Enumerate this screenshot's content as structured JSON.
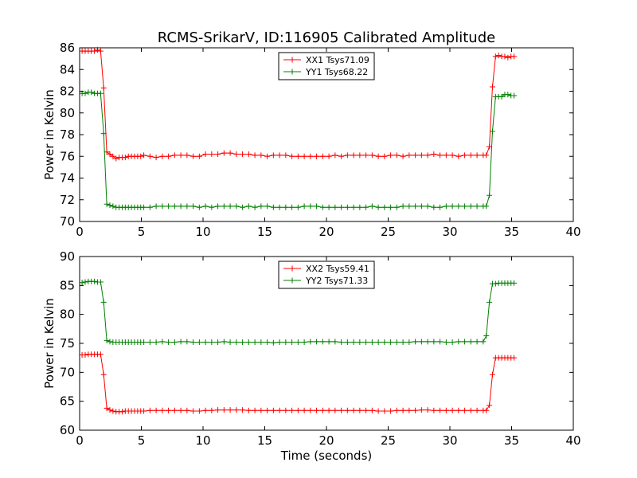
{
  "figure": {
    "title": "RCMS-SrikarV, ID:116905 Calibrated Amplitude"
  },
  "chart_data": [
    {
      "type": "line",
      "title": "RCMS-SrikarV, ID:116905 Calibrated Amplitude",
      "xlabel": "",
      "ylabel": "Power in Kelvin",
      "xlim": [
        0,
        40
      ],
      "ylim": [
        70,
        86
      ],
      "xticks": [
        "0",
        "5",
        "10",
        "15",
        "20",
        "25",
        "30",
        "35",
        "40"
      ],
      "yticks": [
        "70",
        "72",
        "74",
        "76",
        "78",
        "80",
        "82",
        "84",
        "86"
      ],
      "grid": false,
      "legend_position": "top-center",
      "series": [
        {
          "name": "XX1 Tsys71.09",
          "color": "#ff0000",
          "x": [
            0.2,
            0.45,
            0.7,
            0.95,
            1.2,
            1.45,
            1.7,
            1.95,
            2.2,
            2.45,
            2.7,
            2.95,
            3.2,
            3.45,
            3.7,
            3.95,
            4.2,
            4.45,
            4.7,
            4.95,
            5.2,
            5.7,
            6.2,
            6.7,
            7.2,
            7.7,
            8.2,
            8.7,
            9.2,
            9.7,
            10.2,
            10.7,
            11.2,
            11.7,
            12.2,
            12.7,
            13.2,
            13.7,
            14.2,
            14.7,
            15.2,
            15.7,
            16.2,
            16.7,
            17.2,
            17.7,
            18.2,
            18.7,
            19.2,
            19.7,
            20.2,
            20.7,
            21.2,
            21.7,
            22.2,
            22.7,
            23.2,
            23.7,
            24.2,
            24.7,
            25.2,
            25.7,
            26.2,
            26.7,
            27.2,
            27.7,
            28.2,
            28.7,
            29.2,
            29.7,
            30.2,
            30.7,
            31.2,
            31.7,
            32.2,
            32.7,
            32.95,
            33.2,
            33.45,
            33.7,
            33.95,
            34.2,
            34.45,
            34.7,
            34.95,
            35.2
          ],
          "y": [
            85.7,
            85.7,
            85.7,
            85.7,
            85.7,
            85.8,
            85.7,
            82.3,
            76.4,
            76.2,
            76.0,
            75.8,
            75.9,
            75.9,
            75.9,
            76.0,
            76.0,
            76.0,
            76.0,
            76.0,
            76.1,
            76.0,
            75.9,
            76.0,
            76.0,
            76.1,
            76.1,
            76.1,
            76.0,
            76.0,
            76.2,
            76.2,
            76.2,
            76.3,
            76.3,
            76.2,
            76.2,
            76.2,
            76.1,
            76.1,
            76.0,
            76.1,
            76.1,
            76.1,
            76.0,
            76.0,
            76.0,
            76.0,
            76.0,
            76.0,
            76.0,
            76.1,
            76.0,
            76.1,
            76.1,
            76.1,
            76.1,
            76.1,
            76.0,
            76.0,
            76.1,
            76.1,
            76.0,
            76.1,
            76.1,
            76.1,
            76.1,
            76.2,
            76.1,
            76.1,
            76.1,
            76.0,
            76.1,
            76.1,
            76.1,
            76.1,
            76.1,
            76.9,
            82.4,
            85.2,
            85.3,
            85.2,
            85.2,
            85.1,
            85.2,
            85.2
          ]
        },
        {
          "name": "YY1 Tsys68.22",
          "color": "#008000",
          "x": [
            0.2,
            0.45,
            0.7,
            0.95,
            1.2,
            1.45,
            1.7,
            1.95,
            2.2,
            2.45,
            2.7,
            2.95,
            3.2,
            3.45,
            3.7,
            3.95,
            4.2,
            4.45,
            4.7,
            4.95,
            5.2,
            5.7,
            6.2,
            6.7,
            7.2,
            7.7,
            8.2,
            8.7,
            9.2,
            9.7,
            10.2,
            10.7,
            11.2,
            11.7,
            12.2,
            12.7,
            13.2,
            13.7,
            14.2,
            14.7,
            15.2,
            15.7,
            16.2,
            16.7,
            17.2,
            17.7,
            18.2,
            18.7,
            19.2,
            19.7,
            20.2,
            20.7,
            21.2,
            21.7,
            22.2,
            22.7,
            23.2,
            23.7,
            24.2,
            24.7,
            25.2,
            25.7,
            26.2,
            26.7,
            27.2,
            27.7,
            28.2,
            28.7,
            29.2,
            29.7,
            30.2,
            30.7,
            31.2,
            31.7,
            32.2,
            32.7,
            32.95,
            33.2,
            33.45,
            33.7,
            33.95,
            34.2,
            34.45,
            34.7,
            34.95,
            35.2
          ],
          "y": [
            81.8,
            81.8,
            81.9,
            81.9,
            81.8,
            81.8,
            81.8,
            78.1,
            71.6,
            71.5,
            71.4,
            71.3,
            71.3,
            71.3,
            71.3,
            71.3,
            71.3,
            71.3,
            71.3,
            71.3,
            71.3,
            71.3,
            71.4,
            71.4,
            71.4,
            71.4,
            71.4,
            71.4,
            71.4,
            71.3,
            71.4,
            71.3,
            71.4,
            71.4,
            71.4,
            71.4,
            71.3,
            71.4,
            71.3,
            71.4,
            71.4,
            71.3,
            71.3,
            71.3,
            71.3,
            71.3,
            71.4,
            71.4,
            71.4,
            71.3,
            71.3,
            71.3,
            71.3,
            71.3,
            71.3,
            71.3,
            71.3,
            71.4,
            71.3,
            71.3,
            71.3,
            71.3,
            71.4,
            71.4,
            71.4,
            71.4,
            71.4,
            71.3,
            71.3,
            71.4,
            71.4,
            71.4,
            71.4,
            71.4,
            71.4,
            71.4,
            71.4,
            72.4,
            78.3,
            81.5,
            81.5,
            81.5,
            81.7,
            81.7,
            81.6,
            81.6
          ]
        }
      ]
    },
    {
      "type": "line",
      "title": "",
      "xlabel": "Time (seconds)",
      "ylabel": "Power in Kelvin",
      "xlim": [
        0,
        40
      ],
      "ylim": [
        60,
        90
      ],
      "xticks": [
        "0",
        "5",
        "10",
        "15",
        "20",
        "25",
        "30",
        "35",
        "40"
      ],
      "yticks": [
        "60",
        "65",
        "70",
        "75",
        "80",
        "85",
        "90"
      ],
      "grid": false,
      "legend_position": "top-center",
      "series": [
        {
          "name": "XX2 Tsys59.41",
          "color": "#ff0000",
          "x": [
            0.2,
            0.45,
            0.7,
            0.95,
            1.2,
            1.45,
            1.7,
            1.95,
            2.2,
            2.45,
            2.7,
            2.95,
            3.2,
            3.45,
            3.7,
            3.95,
            4.2,
            4.45,
            4.7,
            4.95,
            5.2,
            5.7,
            6.2,
            6.7,
            7.2,
            7.7,
            8.2,
            8.7,
            9.2,
            9.7,
            10.2,
            10.7,
            11.2,
            11.7,
            12.2,
            12.7,
            13.2,
            13.7,
            14.2,
            14.7,
            15.2,
            15.7,
            16.2,
            16.7,
            17.2,
            17.7,
            18.2,
            18.7,
            19.2,
            19.7,
            20.2,
            20.7,
            21.2,
            21.7,
            22.2,
            22.7,
            23.2,
            23.7,
            24.2,
            24.7,
            25.2,
            25.7,
            26.2,
            26.7,
            27.2,
            27.7,
            28.2,
            28.7,
            29.2,
            29.7,
            30.2,
            30.7,
            31.2,
            31.7,
            32.2,
            32.7,
            32.95,
            33.2,
            33.45,
            33.7,
            33.95,
            34.2,
            34.45,
            34.7,
            34.95,
            35.2
          ],
          "y": [
            73.0,
            73.0,
            73.1,
            73.1,
            73.1,
            73.1,
            73.1,
            69.6,
            63.8,
            63.5,
            63.3,
            63.2,
            63.2,
            63.2,
            63.3,
            63.3,
            63.3,
            63.3,
            63.3,
            63.3,
            63.3,
            63.4,
            63.4,
            63.4,
            63.4,
            63.4,
            63.4,
            63.4,
            63.3,
            63.3,
            63.4,
            63.4,
            63.5,
            63.5,
            63.5,
            63.5,
            63.5,
            63.4,
            63.4,
            63.4,
            63.4,
            63.4,
            63.4,
            63.4,
            63.4,
            63.4,
            63.4,
            63.4,
            63.4,
            63.4,
            63.4,
            63.4,
            63.4,
            63.4,
            63.4,
            63.4,
            63.4,
            63.4,
            63.3,
            63.3,
            63.3,
            63.4,
            63.4,
            63.4,
            63.4,
            63.5,
            63.5,
            63.4,
            63.4,
            63.4,
            63.4,
            63.4,
            63.4,
            63.4,
            63.4,
            63.4,
            63.4,
            64.3,
            69.6,
            72.5,
            72.5,
            72.5,
            72.5,
            72.5,
            72.5,
            72.5
          ]
        },
        {
          "name": "YY2 Tsys71.33",
          "color": "#008000",
          "x": [
            0.2,
            0.45,
            0.7,
            0.95,
            1.2,
            1.45,
            1.7,
            1.95,
            2.2,
            2.45,
            2.7,
            2.95,
            3.2,
            3.45,
            3.7,
            3.95,
            4.2,
            4.45,
            4.7,
            4.95,
            5.2,
            5.7,
            6.2,
            6.7,
            7.2,
            7.7,
            8.2,
            8.7,
            9.2,
            9.7,
            10.2,
            10.7,
            11.2,
            11.7,
            12.2,
            12.7,
            13.2,
            13.7,
            14.2,
            14.7,
            15.2,
            15.7,
            16.2,
            16.7,
            17.2,
            17.7,
            18.2,
            18.7,
            19.2,
            19.7,
            20.2,
            20.7,
            21.2,
            21.7,
            22.2,
            22.7,
            23.2,
            23.7,
            24.2,
            24.7,
            25.2,
            25.7,
            26.2,
            26.7,
            27.2,
            27.7,
            28.2,
            28.7,
            29.2,
            29.7,
            30.2,
            30.7,
            31.2,
            31.7,
            32.2,
            32.7,
            32.95,
            33.2,
            33.45,
            33.7,
            33.95,
            34.2,
            34.45,
            34.7,
            34.95,
            35.2
          ],
          "y": [
            85.5,
            85.6,
            85.7,
            85.7,
            85.7,
            85.6,
            85.6,
            82.1,
            75.5,
            75.3,
            75.2,
            75.2,
            75.2,
            75.2,
            75.2,
            75.2,
            75.2,
            75.2,
            75.2,
            75.2,
            75.2,
            75.2,
            75.2,
            75.3,
            75.2,
            75.2,
            75.3,
            75.3,
            75.2,
            75.2,
            75.2,
            75.2,
            75.2,
            75.3,
            75.2,
            75.2,
            75.2,
            75.2,
            75.2,
            75.2,
            75.2,
            75.1,
            75.2,
            75.2,
            75.2,
            75.2,
            75.2,
            75.3,
            75.3,
            75.3,
            75.3,
            75.3,
            75.2,
            75.2,
            75.2,
            75.2,
            75.2,
            75.2,
            75.2,
            75.2,
            75.2,
            75.2,
            75.2,
            75.2,
            75.3,
            75.3,
            75.3,
            75.3,
            75.3,
            75.2,
            75.2,
            75.3,
            75.3,
            75.3,
            75.3,
            75.3,
            76.3,
            82.1,
            85.3,
            85.3,
            85.4,
            85.4,
            85.4,
            85.4,
            85.4,
            85.4
          ]
        }
      ]
    }
  ]
}
